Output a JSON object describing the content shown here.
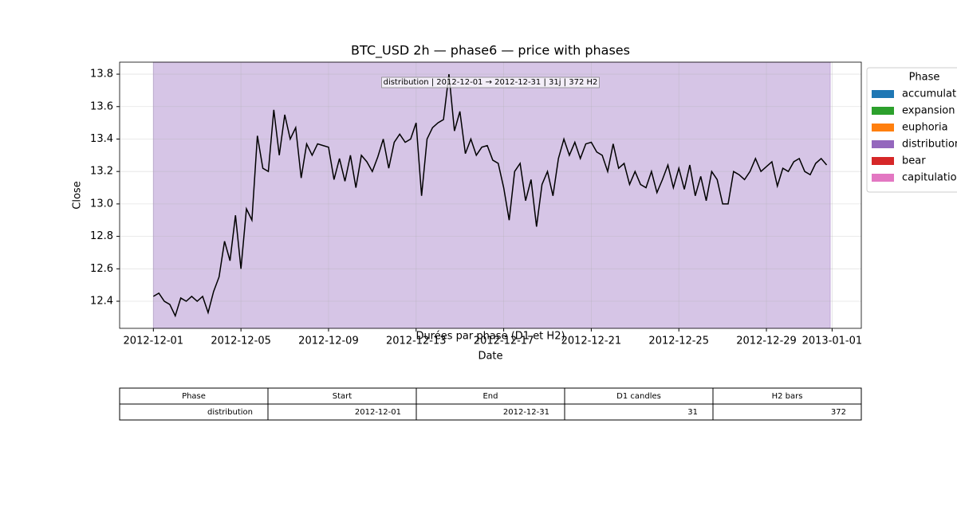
{
  "chart_data": {
    "type": "line",
    "title": "BTC_USD 2h — phase6 — price with phases",
    "x_label": "Date",
    "y_label": "Close",
    "annotation": "distribution | 2012-12-01 → 2012-12-31 | 31j | 372 H2",
    "span": {
      "name": "distribution",
      "start": "2012-12-01 00:00",
      "end": "2012-12-31 22:00",
      "color": "#9467bd"
    },
    "xlim": [
      "2012-11-29 11:00",
      "2013-01-02 08:00"
    ],
    "xticks": [
      "2012-12-01",
      "2012-12-05",
      "2012-12-09",
      "2012-12-13",
      "2012-12-17",
      "2012-12-21",
      "2012-12-25",
      "2012-12-29",
      "2013-01-01"
    ],
    "ylim": [
      12.233,
      13.874
    ],
    "yticks": [
      12.4,
      12.6,
      12.8,
      {
        "value": 13,
        "label": "13.0"
      },
      13.2,
      13.4,
      13.6,
      13.8
    ],
    "grid": true,
    "legend": "outside right",
    "legend_title": "Phase",
    "legend_items": [
      {
        "name": "accumulation",
        "color": "#1f77b4"
      },
      {
        "name": "expansion",
        "color": "#2ca02c"
      },
      {
        "name": "euphoria",
        "color": "#ff7f0e"
      },
      {
        "name": "distribution",
        "color": "#9467bd"
      },
      {
        "name": "bear",
        "color": "#d62728"
      },
      {
        "name": "capitulation",
        "color": "#e377c2"
      }
    ],
    "x": [
      "2012-12-01 00:00",
      "2012-12-01 06:00",
      "2012-12-01 12:00",
      "2012-12-01 18:00",
      "2012-12-02 00:00",
      "2012-12-02 06:00",
      "2012-12-02 12:00",
      "2012-12-02 18:00",
      "2012-12-03 00:00",
      "2012-12-03 06:00",
      "2012-12-03 12:00",
      "2012-12-03 18:00",
      "2012-12-04 00:00",
      "2012-12-04 06:00",
      "2012-12-04 12:00",
      "2012-12-04 18:00",
      "2012-12-05 00:00",
      "2012-12-05 06:00",
      "2012-12-05 12:00",
      "2012-12-05 18:00",
      "2012-12-06 00:00",
      "2012-12-06 06:00",
      "2012-12-06 12:00",
      "2012-12-06 18:00",
      "2012-12-07 00:00",
      "2012-12-07 06:00",
      "2012-12-07 12:00",
      "2012-12-07 18:00",
      "2012-12-08 00:00",
      "2012-12-08 06:00",
      "2012-12-08 12:00",
      "2012-12-08 18:00",
      "2012-12-09 00:00",
      "2012-12-09 06:00",
      "2012-12-09 12:00",
      "2012-12-09 18:00",
      "2012-12-10 00:00",
      "2012-12-10 06:00",
      "2012-12-10 12:00",
      "2012-12-10 18:00",
      "2012-12-11 00:00",
      "2012-12-11 06:00",
      "2012-12-11 12:00",
      "2012-12-11 18:00",
      "2012-12-12 00:00",
      "2012-12-12 06:00",
      "2012-12-12 12:00",
      "2012-12-12 18:00",
      "2012-12-13 00:00",
      "2012-12-13 06:00",
      "2012-12-13 12:00",
      "2012-12-13 18:00",
      "2012-12-14 00:00",
      "2012-12-14 06:00",
      "2012-12-14 12:00",
      "2012-12-14 18:00",
      "2012-12-15 00:00",
      "2012-12-15 06:00",
      "2012-12-15 12:00",
      "2012-12-15 18:00",
      "2012-12-16 00:00",
      "2012-12-16 06:00",
      "2012-12-16 12:00",
      "2012-12-16 18:00",
      "2012-12-17 00:00",
      "2012-12-17 06:00",
      "2012-12-17 12:00",
      "2012-12-17 18:00",
      "2012-12-18 00:00",
      "2012-12-18 06:00",
      "2012-12-18 12:00",
      "2012-12-18 18:00",
      "2012-12-19 00:00",
      "2012-12-19 06:00",
      "2012-12-19 12:00",
      "2012-12-19 18:00",
      "2012-12-20 00:00",
      "2012-12-20 06:00",
      "2012-12-20 12:00",
      "2012-12-20 18:00",
      "2012-12-21 00:00",
      "2012-12-21 06:00",
      "2012-12-21 12:00",
      "2012-12-21 18:00",
      "2012-12-22 00:00",
      "2012-12-22 06:00",
      "2012-12-22 12:00",
      "2012-12-22 18:00",
      "2012-12-23 00:00",
      "2012-12-23 06:00",
      "2012-12-23 12:00",
      "2012-12-23 18:00",
      "2012-12-24 00:00",
      "2012-12-24 06:00",
      "2012-12-24 12:00",
      "2012-12-24 18:00",
      "2012-12-25 00:00",
      "2012-12-25 06:00",
      "2012-12-25 12:00",
      "2012-12-25 18:00",
      "2012-12-26 00:00",
      "2012-12-26 06:00",
      "2012-12-26 12:00",
      "2012-12-26 18:00",
      "2012-12-27 00:00",
      "2012-12-27 06:00",
      "2012-12-27 12:00",
      "2012-12-27 18:00",
      "2012-12-28 00:00",
      "2012-12-28 06:00",
      "2012-12-28 12:00",
      "2012-12-28 18:00",
      "2012-12-29 00:00",
      "2012-12-29 06:00",
      "2012-12-29 12:00",
      "2012-12-29 18:00",
      "2012-12-30 00:00",
      "2012-12-30 06:00",
      "2012-12-30 12:00",
      "2012-12-30 18:00",
      "2012-12-31 00:00",
      "2012-12-31 06:00",
      "2012-12-31 12:00",
      "2012-12-31 18:00"
    ],
    "series": [
      {
        "name": "Close",
        "color": "#000000",
        "values": [
          12.43,
          12.45,
          12.4,
          12.38,
          12.31,
          12.42,
          12.4,
          12.43,
          12.4,
          12.43,
          12.33,
          12.46,
          12.55,
          12.77,
          12.65,
          12.93,
          12.6,
          12.97,
          12.9,
          13.42,
          13.22,
          13.2,
          13.58,
          13.3,
          13.55,
          13.4,
          13.47,
          13.16,
          13.37,
          13.3,
          13.37,
          13.36,
          13.35,
          13.15,
          13.28,
          13.14,
          13.3,
          13.1,
          13.3,
          13.26,
          13.2,
          13.29,
          13.4,
          13.22,
          13.38,
          13.43,
          13.38,
          13.4,
          13.5,
          13.05,
          13.4,
          13.47,
          13.5,
          13.52,
          13.8,
          13.45,
          13.57,
          13.31,
          13.4,
          13.3,
          13.35,
          13.36,
          13.27,
          13.25,
          13.1,
          12.9,
          13.2,
          13.25,
          13.02,
          13.15,
          12.86,
          13.12,
          13.2,
          13.05,
          13.28,
          13.4,
          13.3,
          13.38,
          13.28,
          13.37,
          13.38,
          13.32,
          13.3,
          13.2,
          13.37,
          13.22,
          13.25,
          13.12,
          13.2,
          13.12,
          13.1,
          13.2,
          13.07,
          13.15,
          13.24,
          13.1,
          13.22,
          13.09,
          13.24,
          13.05,
          13.17,
          13.02,
          13.2,
          13.15,
          13.0,
          13.0,
          13.2,
          13.18,
          13.15,
          13.2,
          13.28,
          13.2,
          13.23,
          13.26,
          13.11,
          13.22,
          13.2,
          13.26,
          13.28,
          13.2,
          13.18,
          13.25,
          13.28,
          13.24
        ]
      }
    ]
  },
  "table": {
    "title": "Durées par phase (D1 et H2)",
    "columns": [
      "Phase",
      "Start",
      "End",
      "D1 candles",
      "H2 bars"
    ],
    "rows": [
      [
        "distribution",
        "2012-12-01",
        "2012-12-31",
        31,
        372
      ]
    ]
  }
}
